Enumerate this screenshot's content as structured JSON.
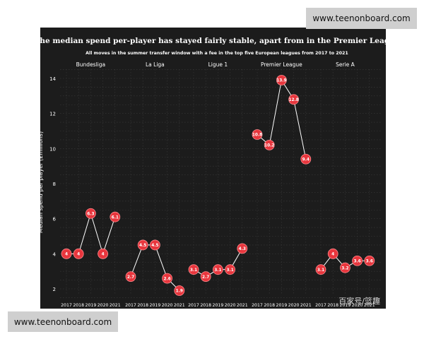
{
  "watermarks": {
    "top": "www.teenonboard.com",
    "bottom": "www.teenonboard.com"
  },
  "caption": "百家号/篮趣",
  "colors": {
    "background": "#1c1c1c",
    "marker": "#e8363d",
    "line": "#ffffff",
    "text": "#ffffff",
    "grid": "#3a3a3a"
  },
  "chart_data": {
    "type": "line",
    "title": "The median spend per-player has stayed fairly stable, apart from in the Premier League",
    "subtitle": "All moves in the summer transfer window with a fee in the top five European leagues from 2017 to 2021",
    "ylabel": "Median spend per player (£millions)",
    "xlabel": "",
    "ylim": [
      1,
      14.5
    ],
    "yticks": [
      2,
      4,
      6,
      8,
      10,
      12,
      14
    ],
    "x": [
      "2017",
      "2018",
      "2019",
      "2020",
      "2021"
    ],
    "series": [
      {
        "name": "Bundesliga",
        "values": [
          4,
          4,
          6.3,
          4,
          6.1
        ],
        "labels": [
          "4",
          "4",
          "6.3",
          "4",
          "6.1"
        ]
      },
      {
        "name": "La Liga",
        "values": [
          2.7,
          4.5,
          4.5,
          2.6,
          1.9
        ],
        "labels": [
          "2.7",
          "4.5",
          "4.5",
          "2.6",
          "1.9"
        ]
      },
      {
        "name": "Ligue 1",
        "values": [
          3.1,
          2.7,
          3.1,
          3.1,
          4.3
        ],
        "labels": [
          "3.1",
          "2.7",
          "3.1",
          "3.1",
          "4.3"
        ]
      },
      {
        "name": "Premier League",
        "values": [
          10.8,
          10.2,
          13.9,
          12.8,
          9.4
        ],
        "labels": [
          "10.8",
          "10.2",
          "13.9",
          "12.8",
          "9.4"
        ]
      },
      {
        "name": "Serie A",
        "values": [
          3.1,
          4,
          3.2,
          3.6,
          3.6
        ],
        "labels": [
          "3.1",
          "4",
          "3.2",
          "3.6",
          "3.6"
        ]
      }
    ]
  }
}
